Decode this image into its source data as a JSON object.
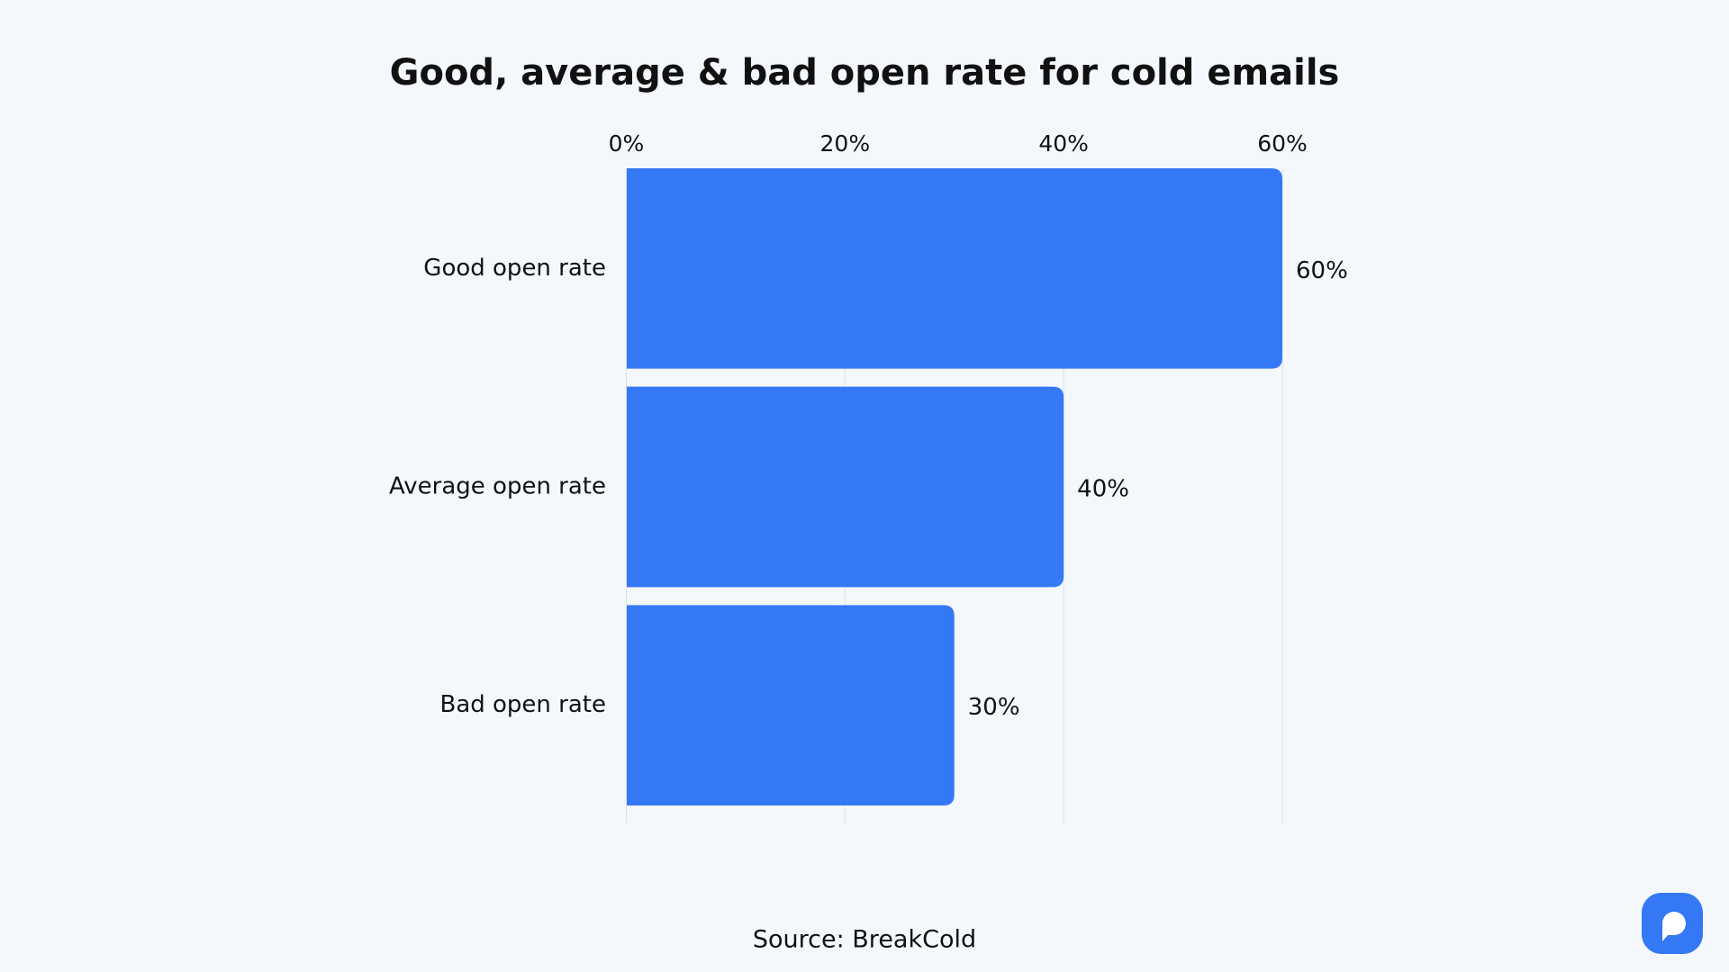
{
  "chart_data": {
    "type": "hbar",
    "title": "Good, average & bad open rate for cold emails",
    "categories": [
      "Good open rate",
      "Average open rate",
      "Bad open rate"
    ],
    "values": [
      60,
      40,
      30
    ],
    "value_labels": [
      "60%",
      "40%",
      "30%"
    ],
    "color": "#3478f6",
    "xlim": [
      0,
      60
    ],
    "xticks": [
      {
        "value": 0,
        "label": "0%"
      },
      {
        "value": 20,
        "label": "20%"
      },
      {
        "value": 40,
        "label": "40%"
      },
      {
        "value": 60,
        "label": "60%"
      }
    ],
    "grid": true,
    "source": "Source: BreakCold"
  }
}
